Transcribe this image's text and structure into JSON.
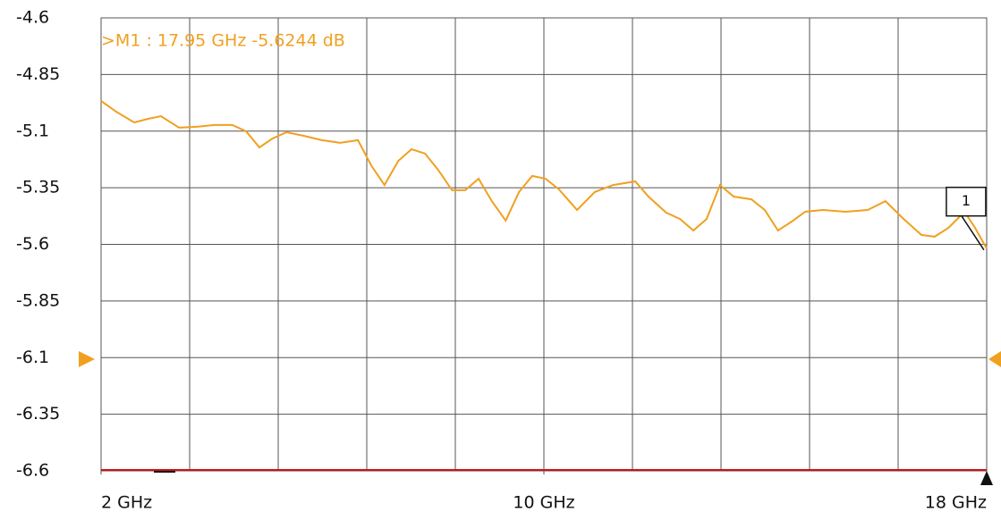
{
  "chart_data": {
    "type": "line",
    "annotation": ">M1 :  17.95 GHz  -5.6244  dB",
    "x": [
      2.0,
      2.27,
      2.6,
      2.84,
      3.08,
      3.41,
      3.73,
      4.05,
      4.37,
      4.62,
      4.86,
      5.1,
      5.35,
      5.67,
      5.99,
      6.32,
      6.64,
      6.88,
      7.12,
      7.37,
      7.61,
      7.85,
      8.09,
      8.34,
      8.58,
      8.82,
      9.06,
      9.31,
      9.55,
      9.79,
      10.03,
      10.27,
      10.6,
      10.92,
      11.25,
      11.65,
      11.89,
      12.21,
      12.46,
      12.7,
      12.94,
      13.18,
      13.43,
      13.75,
      13.99,
      14.23,
      14.48,
      14.72,
      15.04,
      15.45,
      15.85,
      16.17,
      16.5,
      16.82,
      17.06,
      17.31,
      17.6,
      17.79,
      18.0
    ],
    "series": [
      {
        "color": "#f0a020",
        "values": [
          -4.967,
          -5.014,
          -5.062,
          -5.046,
          -5.034,
          -5.085,
          -5.081,
          -5.073,
          -5.073,
          -5.101,
          -5.172,
          -5.132,
          -5.105,
          -5.121,
          -5.14,
          -5.152,
          -5.14,
          -5.251,
          -5.338,
          -5.231,
          -5.18,
          -5.199,
          -5.271,
          -5.361,
          -5.361,
          -5.31,
          -5.409,
          -5.495,
          -5.369,
          -5.298,
          -5.31,
          -5.357,
          -5.448,
          -5.369,
          -5.338,
          -5.322,
          -5.389,
          -5.46,
          -5.488,
          -5.539,
          -5.488,
          -5.338,
          -5.389,
          -5.401,
          -5.448,
          -5.539,
          -5.499,
          -5.456,
          -5.448,
          -5.456,
          -5.448,
          -5.409,
          -5.488,
          -5.558,
          -5.566,
          -5.527,
          -5.456,
          -5.527,
          -5.618
        ]
      }
    ],
    "marker": {
      "label": "1",
      "x": 17.95,
      "y": -5.6244
    },
    "xlim": [
      2,
      18
    ],
    "xticks": [
      {
        "value": 2,
        "label": "2 GHz"
      },
      {
        "value": 10,
        "label": "10 GHz"
      },
      {
        "value": 18,
        "label": "18 GHz"
      }
    ],
    "ylim": [
      -6.6,
      -4.6
    ],
    "yticks": [
      -4.6,
      -4.85,
      -5.1,
      -5.35,
      -5.6,
      -5.85,
      -6.1,
      -6.35,
      -6.6
    ],
    "grid": true
  }
}
